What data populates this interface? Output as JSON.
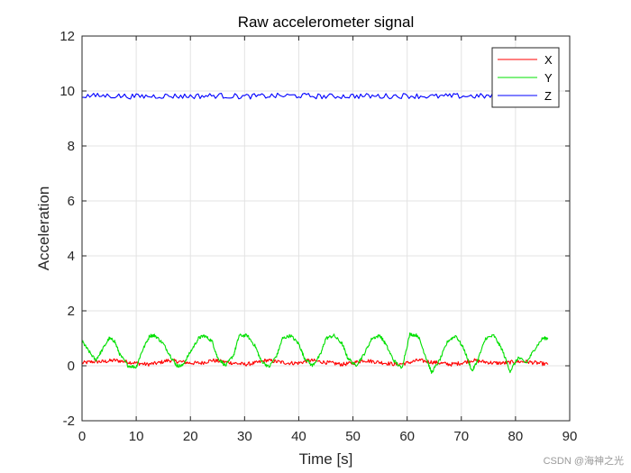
{
  "chart_data": {
    "type": "line",
    "title": "Raw accelerometer signal",
    "xlabel": "Time [s]",
    "ylabel": "Acceleration",
    "xlim": [
      0,
      90
    ],
    "ylim": [
      -2,
      12
    ],
    "xticks": [
      0,
      10,
      20,
      30,
      40,
      50,
      60,
      70,
      80,
      90
    ],
    "yticks": [
      -2,
      0,
      2,
      4,
      6,
      8,
      10,
      12
    ],
    "grid": true,
    "legend_position": "top-right",
    "series": [
      {
        "name": "X",
        "color": "#ff0000",
        "x": [
          0,
          2,
          4,
          6,
          8,
          10,
          12,
          14,
          16,
          18,
          20,
          22,
          24,
          26,
          28,
          30,
          32,
          34,
          36,
          38,
          40,
          42,
          44,
          46,
          48,
          50,
          52,
          54,
          56,
          58,
          60,
          62,
          64,
          66,
          68,
          70,
          72,
          74,
          76,
          78,
          80,
          82,
          84,
          86
        ],
        "values": [
          0.1,
          0.15,
          0.15,
          0.2,
          0.15,
          0.1,
          0.05,
          0.1,
          0.2,
          0.15,
          0.1,
          0.1,
          0.2,
          0.15,
          0.1,
          0.05,
          0.1,
          0.2,
          0.15,
          0.1,
          0.1,
          0.2,
          0.15,
          0.1,
          0.05,
          0.1,
          0.2,
          0.15,
          0.1,
          0.05,
          0.1,
          0.2,
          0.15,
          0.1,
          0.05,
          0.1,
          0.2,
          0.15,
          0.1,
          0.1,
          0.15,
          0.15,
          0.1,
          0.05
        ]
      },
      {
        "name": "Y",
        "color": "#00e000",
        "x": [
          0,
          1,
          2.5,
          3.5,
          5,
          6,
          7,
          8.5,
          10,
          11,
          12.5,
          13.5,
          15,
          16.5,
          17.5,
          18.5,
          20,
          21.5,
          22.5,
          24,
          25,
          26.5,
          28,
          29,
          30.5,
          32,
          33,
          34.5,
          36,
          37,
          38.5,
          40,
          41,
          42.5,
          44,
          45,
          46.5,
          48,
          49,
          50.5,
          52,
          53.5,
          55,
          56,
          57.5,
          59,
          60.5,
          62,
          63.5,
          64.5,
          66,
          67.5,
          69,
          70.5,
          72,
          73,
          74.5,
          76,
          77.5,
          79,
          80.5,
          82,
          83.5,
          85,
          86
        ],
        "values": [
          0.9,
          0.6,
          0.2,
          0.5,
          1.0,
          0.9,
          0.4,
          0.0,
          -0.05,
          0.5,
          1.1,
          1.1,
          0.8,
          0.3,
          0.0,
          0.0,
          0.5,
          1.0,
          1.1,
          0.9,
          0.3,
          0.0,
          0.4,
          1.1,
          1.1,
          0.7,
          0.2,
          -0.05,
          0.4,
          1.0,
          1.1,
          0.8,
          0.3,
          0.0,
          0.4,
          1.0,
          1.1,
          0.8,
          0.3,
          0.0,
          0.4,
          1.0,
          1.1,
          0.8,
          0.2,
          -0.1,
          1.15,
          1.1,
          0.3,
          -0.25,
          0.2,
          0.9,
          1.1,
          0.6,
          -0.2,
          0.2,
          1.0,
          1.1,
          0.6,
          -0.2,
          0.3,
          0.1,
          0.6,
          1.0,
          1.0
        ]
      },
      {
        "name": "Z",
        "color": "#0000ff",
        "x": [
          0,
          5,
          10,
          15,
          20,
          25,
          30,
          35,
          40,
          45,
          50,
          55,
          60,
          65,
          70,
          75,
          80,
          85
        ],
        "values": [
          9.82,
          9.83,
          9.8,
          9.82,
          9.81,
          9.83,
          9.8,
          9.82,
          9.83,
          9.8,
          9.82,
          9.81,
          9.83,
          9.8,
          9.82,
          9.81,
          9.83,
          9.82
        ]
      }
    ]
  },
  "watermark": "CSDN @海神之光"
}
